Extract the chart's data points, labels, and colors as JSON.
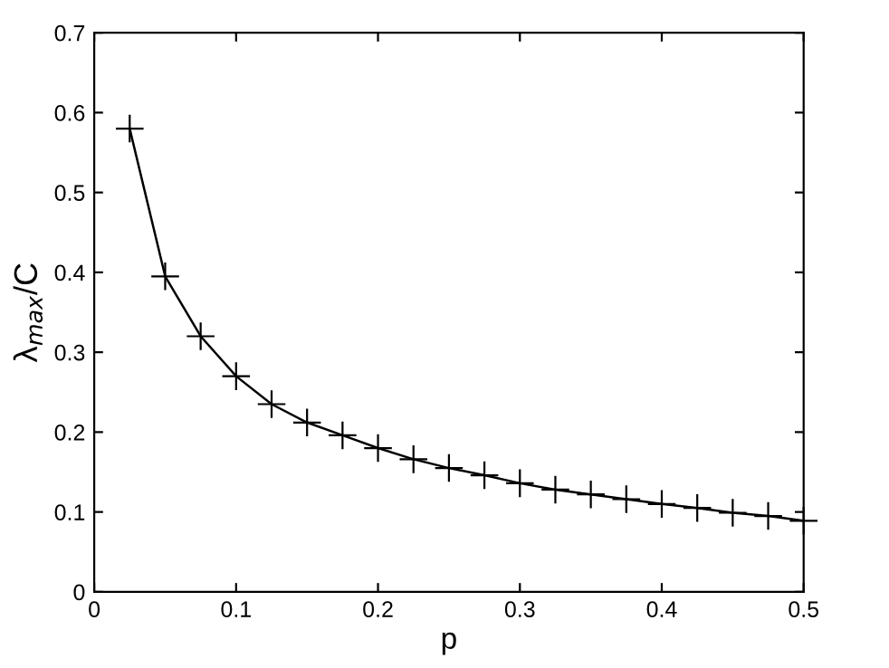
{
  "chart_data": {
    "type": "line",
    "xlabel": "p",
    "ylabel": "λ$_{max}$/C",
    "x": [
      0.025,
      0.05,
      0.075,
      0.1,
      0.125,
      0.15,
      0.175,
      0.2,
      0.225,
      0.25,
      0.275,
      0.3,
      0.325,
      0.35,
      0.375,
      0.4,
      0.425,
      0.45,
      0.475,
      0.5
    ],
    "series": [
      {
        "color": "#000000",
        "values": [
          0.58,
          0.395,
          0.32,
          0.27,
          0.235,
          0.212,
          0.196,
          0.18,
          0.166,
          0.155,
          0.146,
          0.136,
          0.128,
          0.122,
          0.116,
          0.11,
          0.105,
          0.099,
          0.095,
          0.089
        ]
      }
    ],
    "marker": "cross",
    "line_style": "solid",
    "xlim": [
      0,
      0.5
    ],
    "xticks": [
      0,
      0.1,
      0.2,
      0.3,
      0.4,
      0.5
    ],
    "ylim": [
      0,
      0.7
    ],
    "yticks": [
      0,
      0.1,
      0.2,
      0.3,
      0.4,
      0.5,
      0.6,
      0.7
    ],
    "grid": false,
    "legend": false
  }
}
